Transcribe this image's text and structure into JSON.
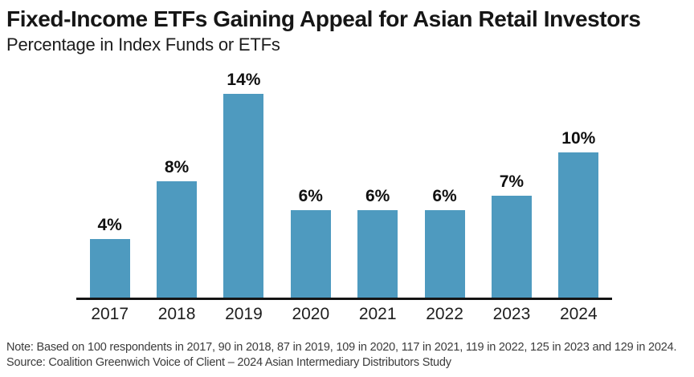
{
  "header": {
    "title": "Fixed-Income ETFs Gaining Appeal for Asian Retail Investors",
    "subtitle": "Percentage in Index Funds or ETFs"
  },
  "chart_data": {
    "type": "bar",
    "title": "Fixed-Income ETFs Gaining Appeal for Asian Retail Investors",
    "subtitle": "Percentage in Index Funds or ETFs",
    "categories": [
      "2017",
      "2018",
      "2019",
      "2020",
      "2021",
      "2022",
      "2023",
      "2024"
    ],
    "values": [
      4,
      8,
      14,
      6,
      6,
      6,
      7,
      10
    ],
    "value_labels": [
      "4%",
      "8%",
      "14%",
      "6%",
      "6%",
      "6%",
      "7%",
      "10%"
    ],
    "xlabel": "",
    "ylabel": "",
    "ylim": [
      0,
      14
    ],
    "grid": false,
    "legend": false,
    "bar_color": "#4E9ABF",
    "axis_line_color": "#141414",
    "label_color": "#101010"
  },
  "footnote": {
    "note": "Note: Based on 100 respondents in 2017, 90 in 2018, 87 in 2019, 109 in 2020, 117 in 2021, 119 in 2022, 125 in 2023 and 129 in 2024.",
    "source": "Source: Coalition Greenwich Voice of Client – 2024 Asian Intermediary Distributors Study"
  }
}
